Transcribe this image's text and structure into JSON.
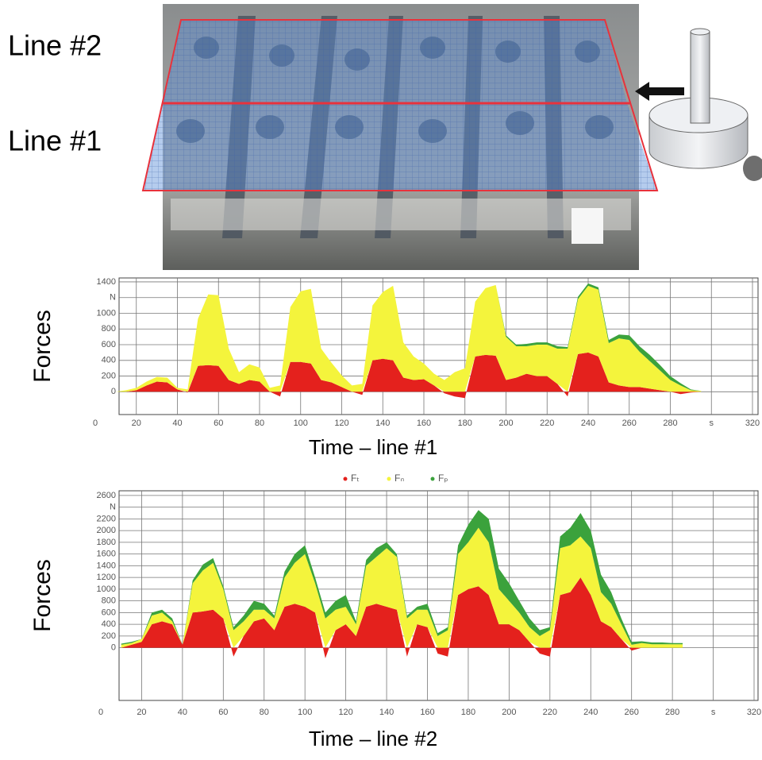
{
  "photo": {
    "labels": [
      "Line #2",
      "Line #1"
    ]
  },
  "chart_data": [
    {
      "type": "area",
      "x_label": "Time – line #1",
      "y_label": "Forces",
      "x": [
        10,
        15,
        20,
        25,
        30,
        35,
        40,
        45,
        50,
        55,
        60,
        65,
        70,
        75,
        80,
        85,
        90,
        95,
        100,
        105,
        110,
        115,
        120,
        125,
        130,
        135,
        140,
        145,
        150,
        155,
        160,
        165,
        170,
        175,
        180,
        185,
        190,
        195,
        200,
        205,
        210,
        215,
        220,
        225,
        230,
        235,
        240,
        245,
        250,
        255,
        260,
        265,
        270,
        275,
        280,
        285,
        290,
        295
      ],
      "series": [
        {
          "name": "Fₜ",
          "color": "#e4211d",
          "values": [
            0,
            0,
            20,
            80,
            130,
            120,
            30,
            -10,
            330,
            340,
            330,
            150,
            100,
            150,
            130,
            0,
            -60,
            380,
            380,
            360,
            150,
            120,
            60,
            0,
            -40,
            400,
            420,
            400,
            180,
            150,
            160,
            80,
            -20,
            -60,
            -80,
            450,
            470,
            460,
            150,
            180,
            230,
            200,
            200,
            100,
            -60,
            480,
            500,
            450,
            120,
            80,
            60,
            60,
            40,
            20,
            0,
            -30,
            -10,
            0
          ]
        },
        {
          "name": "Fₙ",
          "color": "#f4f43c",
          "values": [
            0,
            20,
            30,
            50,
            60,
            60,
            20,
            30,
            600,
            900,
            900,
            400,
            150,
            200,
            180,
            50,
            80,
            700,
            900,
            950,
            400,
            250,
            150,
            80,
            100,
            700,
            850,
            950,
            450,
            300,
            200,
            150,
            150,
            250,
            300,
            700,
            850,
            900,
            550,
            400,
            350,
            400,
            400,
            450,
            550,
            700,
            850,
            850,
            500,
            600,
            600,
            450,
            350,
            250,
            150,
            80,
            20,
            10
          ]
        },
        {
          "name": "Fₚ",
          "color": "#3ba23c",
          "values": [
            0,
            0,
            0,
            0,
            0,
            0,
            0,
            0,
            0,
            0,
            0,
            0,
            0,
            0,
            0,
            0,
            0,
            0,
            0,
            0,
            0,
            0,
            0,
            0,
            0,
            0,
            0,
            0,
            0,
            0,
            0,
            0,
            0,
            0,
            0,
            0,
            0,
            0,
            20,
            20,
            30,
            30,
            30,
            30,
            20,
            30,
            30,
            30,
            40,
            50,
            60,
            70,
            80,
            70,
            50,
            30,
            10,
            0
          ]
        }
      ],
      "xlim": [
        0,
        320
      ],
      "ylim": [
        -290,
        1450
      ],
      "xticks": [
        0,
        20,
        40,
        60,
        80,
        100,
        120,
        140,
        160,
        180,
        200,
        220,
        240,
        260,
        280,
        {
          "value": 300,
          "label": "s"
        },
        320
      ],
      "yticks": [
        0,
        200,
        400,
        600,
        800,
        1000,
        {
          "value": 1200,
          "label": "N"
        },
        1400
      ],
      "grid": true,
      "legend": "below"
    },
    {
      "type": "area",
      "x_label": "Time – line #2",
      "y_label": "Forces",
      "x": [
        10,
        15,
        20,
        25,
        30,
        35,
        40,
        45,
        50,
        55,
        60,
        65,
        70,
        75,
        80,
        85,
        90,
        95,
        100,
        105,
        110,
        115,
        120,
        125,
        130,
        135,
        140,
        145,
        150,
        155,
        160,
        165,
        170,
        175,
        180,
        185,
        190,
        195,
        200,
        205,
        210,
        215,
        220,
        225,
        230,
        235,
        240,
        245,
        250,
        255,
        260,
        265,
        270,
        275,
        280,
        285
      ],
      "series": [
        {
          "color": "#e4211d",
          "values": [
            0,
            50,
            100,
            400,
            450,
            400,
            50,
            600,
            620,
            650,
            500,
            -150,
            200,
            450,
            500,
            300,
            700,
            750,
            700,
            600,
            -180,
            300,
            400,
            200,
            700,
            750,
            700,
            650,
            -150,
            400,
            350,
            -100,
            -150,
            900,
            1000,
            1050,
            900,
            400,
            400,
            300,
            100,
            -100,
            -150,
            900,
            950,
            1200,
            900,
            450,
            350,
            150,
            -50,
            0,
            0,
            0,
            0,
            0
          ]
        },
        {
          "color": "#f4f43c",
          "values": [
            50,
            30,
            50,
            150,
            150,
            50,
            0,
            500,
            700,
            800,
            500,
            300,
            250,
            200,
            150,
            200,
            500,
            700,
            900,
            500,
            500,
            350,
            300,
            200,
            700,
            800,
            1000,
            900,
            500,
            250,
            300,
            200,
            300,
            700,
            800,
            1000,
            900,
            600,
            400,
            300,
            250,
            200,
            300,
            800,
            800,
            700,
            800,
            500,
            400,
            250,
            50,
            80,
            60,
            60,
            60,
            60
          ]
        },
        {
          "color": "#3ba23c",
          "values": [
            20,
            20,
            0,
            50,
            50,
            50,
            0,
            50,
            100,
            80,
            50,
            50,
            100,
            150,
            100,
            50,
            100,
            150,
            150,
            100,
            100,
            150,
            200,
            50,
            100,
            150,
            100,
            50,
            50,
            50,
            100,
            50,
            50,
            150,
            300,
            300,
            400,
            350,
            300,
            200,
            150,
            100,
            50,
            200,
            300,
            400,
            300,
            300,
            200,
            100,
            50,
            30,
            30,
            30,
            20,
            20
          ]
        }
      ],
      "xlim": [
        0,
        320
      ],
      "ylim": [
        -900,
        2680
      ],
      "xticks": [
        0,
        20,
        40,
        60,
        80,
        100,
        120,
        140,
        160,
        180,
        200,
        220,
        240,
        260,
        280,
        {
          "value": 300,
          "label": "s"
        },
        320
      ],
      "yticks": [
        0,
        200,
        400,
        600,
        800,
        1000,
        1200,
        1400,
        1600,
        1800,
        2000,
        2200,
        {
          "value": 2400,
          "label": "N"
        },
        2600
      ],
      "grid": true
    }
  ]
}
